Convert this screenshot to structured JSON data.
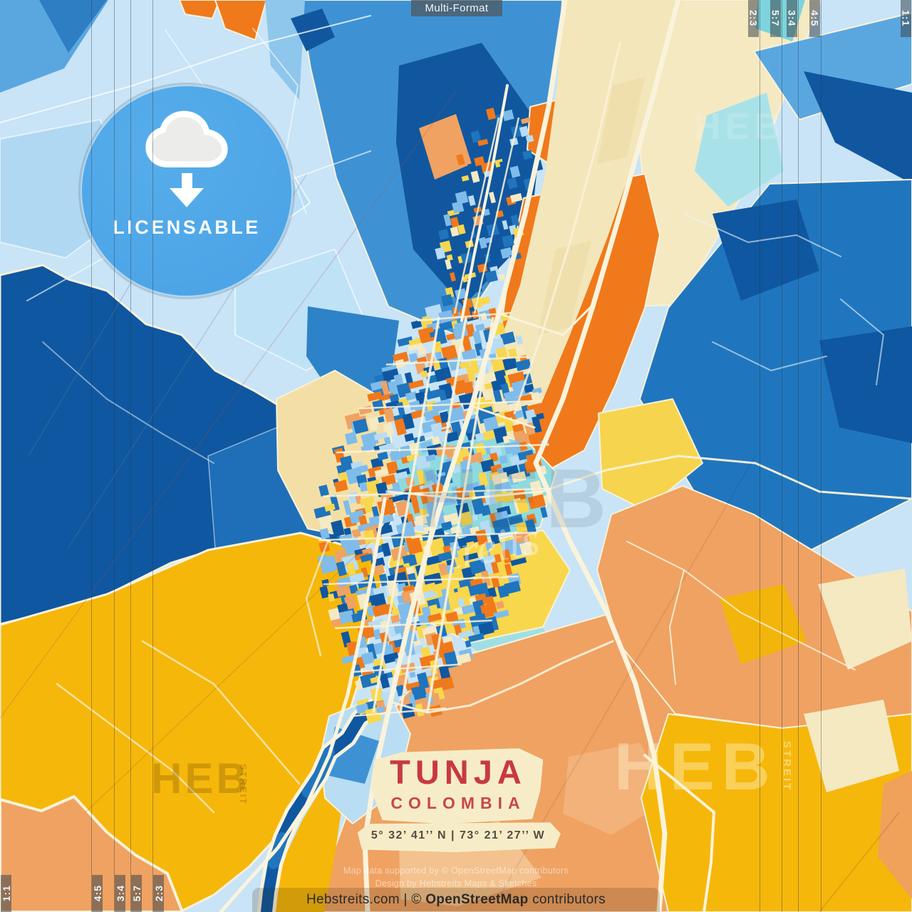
{
  "header": {
    "format_label": "Multi-Format"
  },
  "badge": {
    "label": "LICENSABLE",
    "icon": "cloud-download-icon"
  },
  "crop_guides": {
    "ratios_top_right": [
      "2:3",
      "5:7",
      "3:4",
      "4:5",
      "1:1"
    ],
    "ratios_bottom_left": [
      "1:1",
      "4:5",
      "3:4",
      "5:7",
      "2:3"
    ]
  },
  "title_block": {
    "city": "TUNJA",
    "country": "COLOMBIA",
    "coordinates": "5° 32’ 41’’ N | 73° 21’ 27’’ W"
  },
  "watermarks": {
    "brand_short": "HEB",
    "brand_script": "treits",
    "brand_vertical": "STREIT"
  },
  "attribution": {
    "soft_line1": "Map data supported by © OpenStreetMap contributors",
    "soft_line2": "Design by Hebstreits Maps & Sketches",
    "footer_prefix": "Hebstreits.com | © ",
    "footer_strong": "OpenStreetMap",
    "footer_suffix": " contributors"
  },
  "colors": {
    "badge_blue": "#4FA7E8",
    "title_red": "#C93840",
    "pale_blue": "#C8E4F6",
    "mid_blue": "#3E92D4",
    "blue": "#2076BE",
    "navy": "#0F57A0",
    "teal": "#8FDADF",
    "cream": "#F5E9C2",
    "yellow": "#F8D74D",
    "gold": "#F6B70B",
    "orange": "#F0791B",
    "salmon": "#EFA262",
    "road": "#FAF3DC",
    "mosaic": [
      "#0F57A0",
      "#1F74BC",
      "#7FBCEA",
      "#B7DCF4",
      "#F0791B",
      "#EFA262",
      "#F8D74D",
      "#F5EAC3"
    ]
  }
}
